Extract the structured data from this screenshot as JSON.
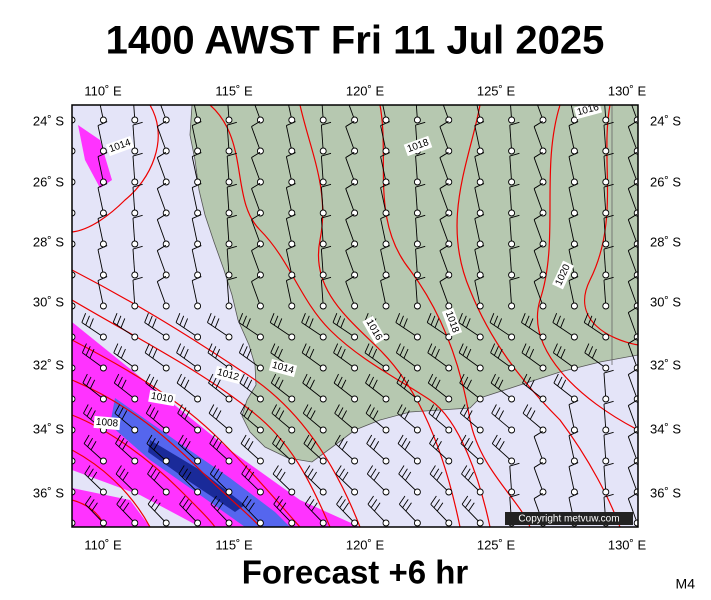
{
  "title": "1400 AWST Fri 11 Jul 2025",
  "lon_labels": [
    "110˚ E",
    "115˚ E",
    "120˚ E",
    "125˚ E",
    "130˚ E"
  ],
  "lat_labels": [
    "24˚ S",
    "26˚ S",
    "28˚ S",
    "30˚ S",
    "32˚ S",
    "34˚ S",
    "36˚ S"
  ],
  "isobar_labels": [
    "1014",
    "1018",
    "1016",
    "1020",
    "1018",
    "1016",
    "1014",
    "1012",
    "1010",
    "1008"
  ],
  "copyright": "Copyright metvuw.com",
  "footer": "Forecast +6 hr",
  "model": "M4"
}
